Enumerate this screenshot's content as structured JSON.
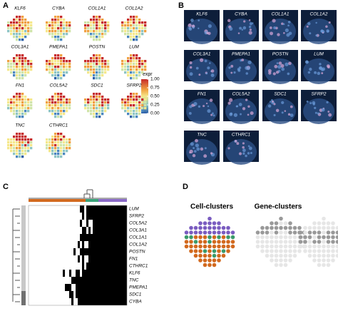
{
  "panels": {
    "A": {
      "label": "A",
      "genes": [
        "KLF6",
        "CYBA",
        "COL1A1",
        "COL1A2",
        "COL3A1",
        "PMEPA1",
        "POSTN",
        "LUM",
        "FN1",
        "COL5A2",
        "SDC1",
        "SFRP2",
        "TNC",
        "CTHRC1"
      ],
      "legend": {
        "title": "expr",
        "ticks": [
          {
            "value": 1,
            "label": "1.00"
          },
          {
            "value": 0.75,
            "label": "0.75"
          },
          {
            "value": 0.5,
            "label": "0.50"
          },
          {
            "value": 0.25,
            "label": "0.25"
          },
          {
            "value": 0,
            "label": "0.00"
          }
        ]
      }
    },
    "B": {
      "label": "B",
      "genes": [
        "KLF6",
        "CYBA",
        "COL1A1",
        "COL1A2",
        "COL3A1",
        "PMEPA1",
        "POSTN",
        "LUM",
        "FN1",
        "COL5A2",
        "SDC1",
        "SFRP2",
        "TNC",
        "CTHRC1"
      ]
    },
    "C": {
      "label": "C",
      "genes": [
        "LUM",
        "SFRP2",
        "COL5A2",
        "COL3A1",
        "COL1A1",
        "COL1A2",
        "POSTN",
        "FN1",
        "CTHRC1",
        "KLF6",
        "TNC",
        "PMEPA1",
        "SDC1",
        "CYBA"
      ]
    },
    "D": {
      "label": "D",
      "titles": [
        "Cell-clusters",
        "Gene-clusters"
      ]
    }
  }
}
